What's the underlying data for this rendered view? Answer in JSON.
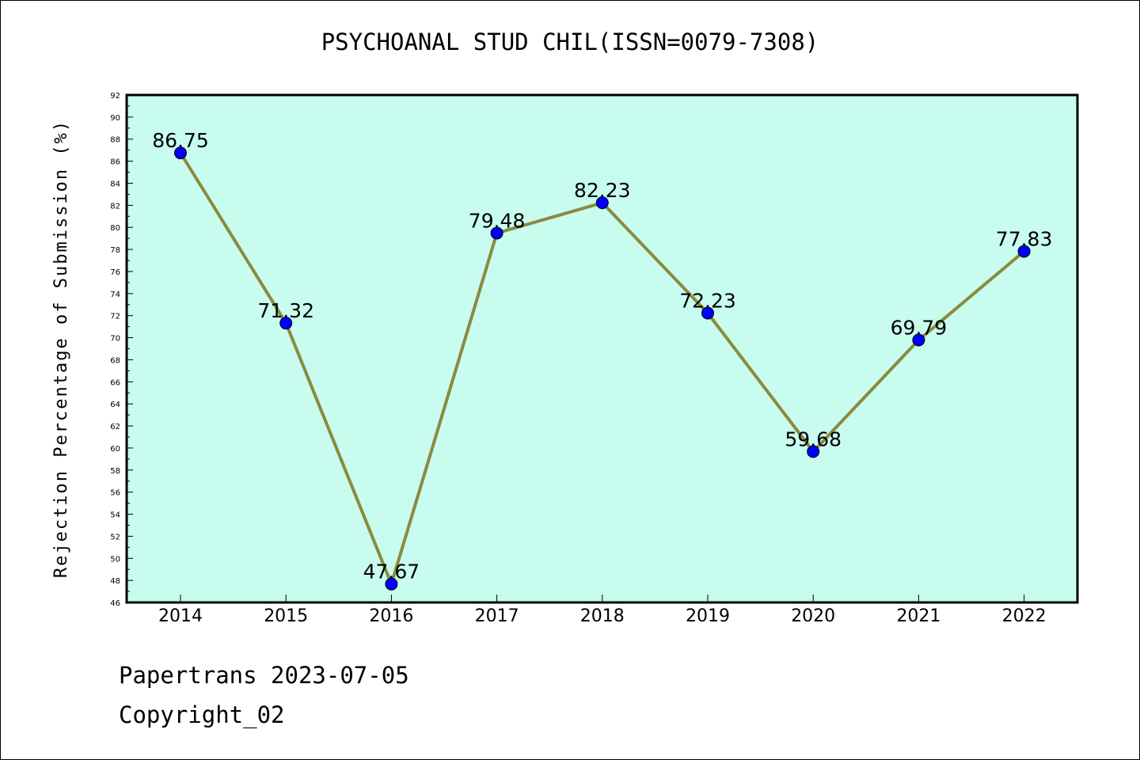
{
  "chart_data": {
    "type": "line",
    "title": "PSYCHOANAL STUD CHIL(ISSN=0079-7308)",
    "xlabel": "",
    "ylabel": "Rejection Percentage of Submission (%)",
    "categories": [
      "2014",
      "2015",
      "2016",
      "2017",
      "2018",
      "2019",
      "2020",
      "2021",
      "2022"
    ],
    "series": [
      {
        "values": [
          86.75,
          71.32,
          47.67,
          79.48,
          82.23,
          72.23,
          59.68,
          69.79,
          77.83
        ],
        "data_labels": [
          "86.75",
          "71.32",
          "47.67",
          "79.48",
          "82.23",
          "72.23",
          "59.68",
          "69.79",
          "77.83"
        ]
      }
    ],
    "ylim": [
      46,
      92
    ],
    "yticks": [
      "46",
      "48",
      "50",
      "52",
      "54",
      "56",
      "58",
      "60",
      "62",
      "64",
      "66",
      "68",
      "70",
      "72",
      "74",
      "76",
      "78",
      "80",
      "82",
      "84",
      "86",
      "88",
      "90",
      "92"
    ],
    "grid": false,
    "colors": {
      "plot_background": "#c8fcee",
      "line": "#8b8a3e",
      "marker": "#0000ff"
    }
  },
  "footer": {
    "line1": "Papertrans 2023-07-05",
    "line2": "Copyright_02"
  }
}
